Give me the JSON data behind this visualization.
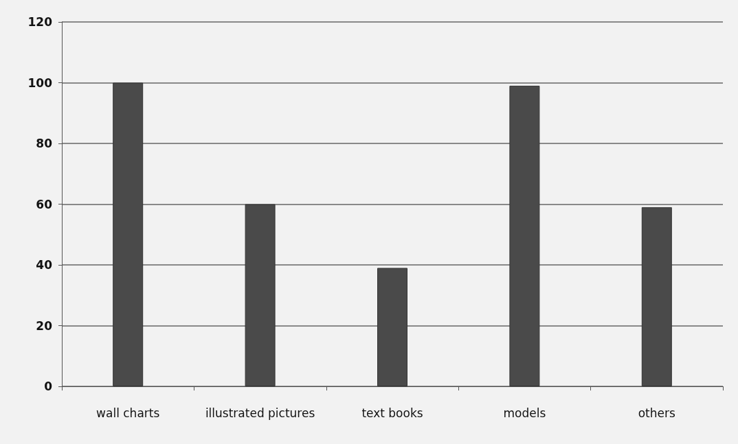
{
  "chart_data": {
    "type": "bar",
    "categories": [
      "wall charts",
      "illustrated pictures",
      "text books",
      "models",
      "others"
    ],
    "values": [
      100,
      60,
      39,
      99,
      59
    ],
    "color": "#4a4a4a",
    "ylim": [
      0,
      120
    ],
    "yticks": [
      0,
      20,
      40,
      60,
      80,
      100,
      120
    ],
    "grid": "y"
  }
}
